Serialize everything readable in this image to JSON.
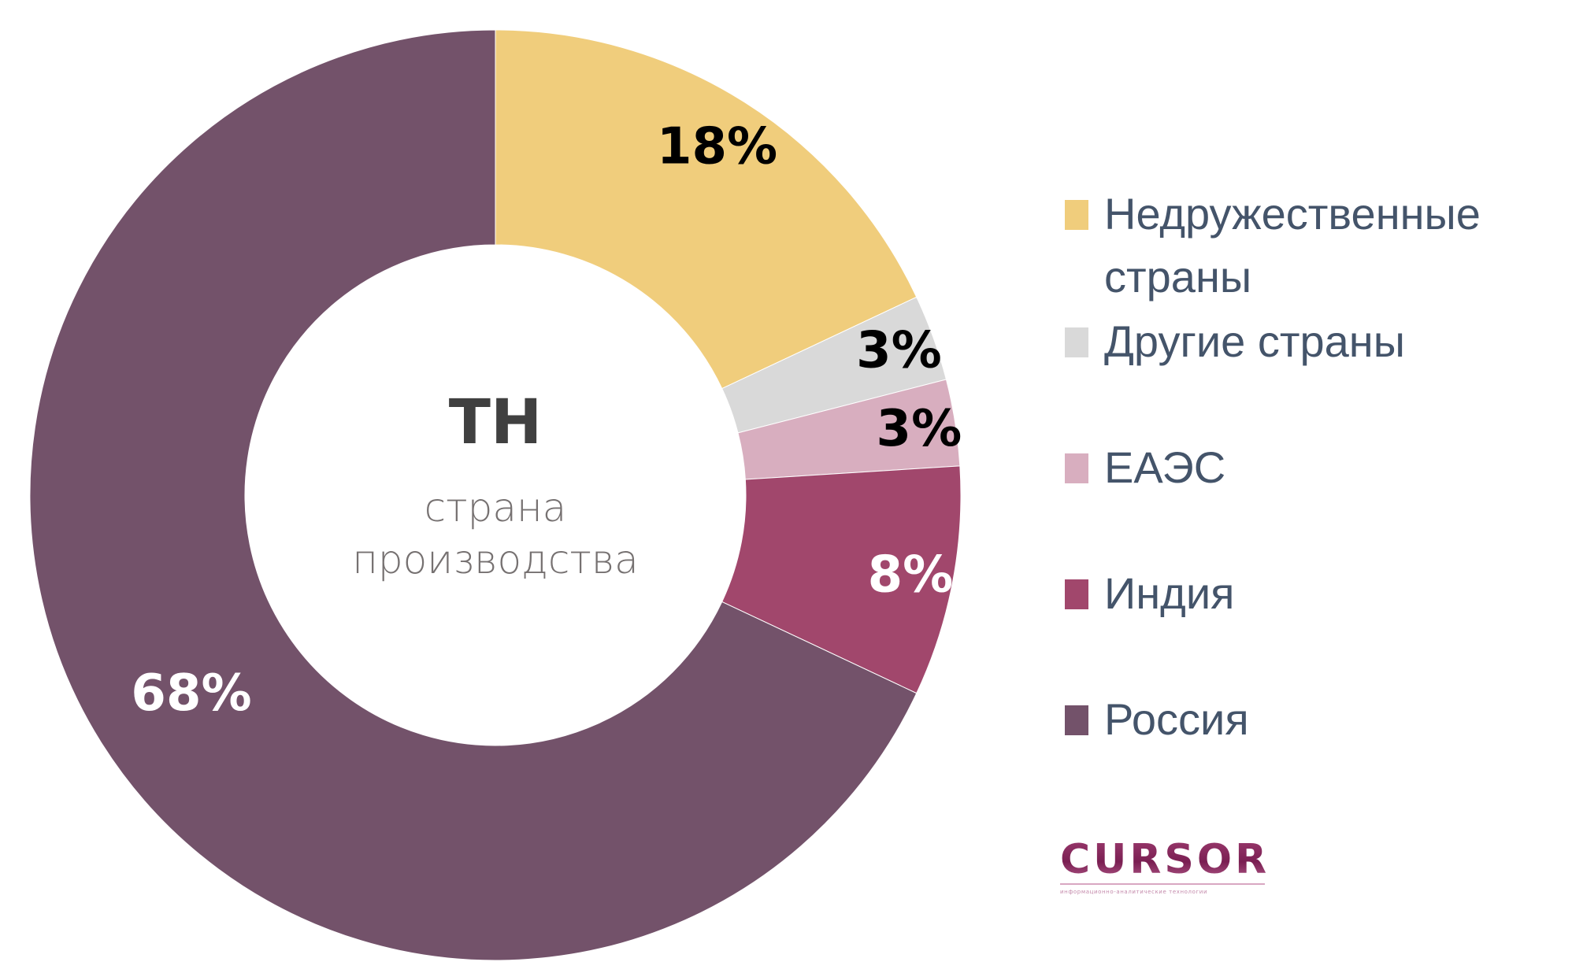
{
  "chart_data": {
    "type": "pie",
    "subtype": "donut",
    "title": "ТН",
    "subtitle": "страна производства",
    "categories": [
      "Недружественные страны",
      "Другие страны",
      "ЕАЭС",
      "Индия",
      "Россия"
    ],
    "values": [
      18,
      3,
      3,
      8,
      68
    ],
    "unit": "%",
    "colors": [
      "#F0CD7C",
      "#D9D9D9",
      "#D8AEBF",
      "#A1476C",
      "#73526A"
    ],
    "data_labels": [
      "18%",
      "3%",
      "3%",
      "8%",
      "68%"
    ],
    "data_label_colors": [
      "#000000",
      "#000000",
      "#000000",
      "#FFFFFF",
      "#FFFFFF"
    ],
    "start_angle_deg": 0,
    "direction": "clockwise",
    "legend_position": "right"
  },
  "center": {
    "title": "ТН",
    "subtitle_line1": "страна",
    "subtitle_line2": "производства"
  },
  "legend": {
    "items": [
      {
        "label": "Недружественные страны",
        "color": "#F0CD7C"
      },
      {
        "label": "Другие страны",
        "color": "#D9D9D9"
      },
      {
        "label": "ЕАЭС",
        "color": "#D8AEBF"
      },
      {
        "label": "Индия",
        "color": "#A1476C"
      },
      {
        "label": "Россия",
        "color": "#73526A"
      }
    ]
  },
  "logo": {
    "name": "CURSOR",
    "tagline": "информационно-аналитические технологии",
    "color": "#8B2A5E"
  }
}
